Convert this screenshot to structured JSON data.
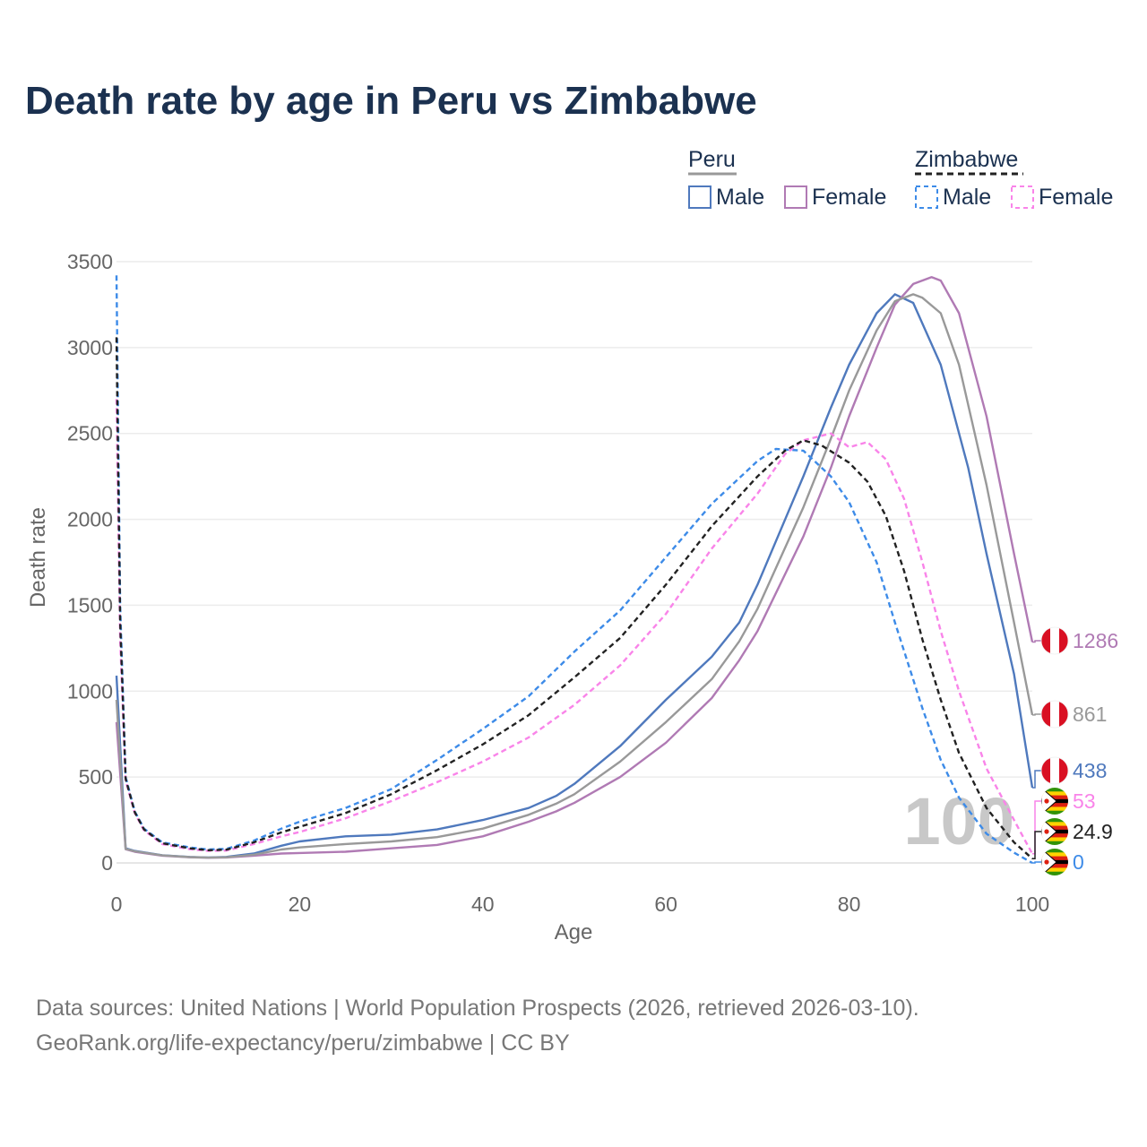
{
  "title": "Death rate by age in Peru vs Zimbabwe",
  "footer": {
    "line1": "Data sources: United Nations | World Population Prospects (2026, retrieved 2026-03-10).",
    "line2": "GeoRank.org/life-expectancy/peru/zimbabwe | CC BY"
  },
  "chart_data": {
    "type": "line",
    "title": "Death rate by age in Peru vs Zimbabwe",
    "xlabel": "Age",
    "ylabel": "Death rate",
    "xlim": [
      0,
      100
    ],
    "ylim": [
      0,
      3500
    ],
    "xticks": [
      0,
      20,
      40,
      60,
      80,
      100
    ],
    "yticks": [
      0,
      500,
      1000,
      1500,
      2000,
      2500,
      3000,
      3500
    ],
    "grid": true,
    "watermark": "100",
    "legend": {
      "groups": [
        {
          "name": "Peru",
          "items": [
            "Male",
            "Female"
          ]
        },
        {
          "name": "Zimbabwe",
          "items": [
            "Male",
            "Female"
          ]
        }
      ]
    },
    "colors": {
      "peru_male": "#4f79bd",
      "peru_female": "#b07ab4",
      "peru_total": "#999999",
      "zim_male": "#3d8be8",
      "zim_female": "#f984e9",
      "zim_total": "#222222"
    },
    "series": [
      {
        "name": "Peru Male",
        "color": "#4f79bd",
        "dash": false,
        "end_label": "438",
        "x": [
          0,
          1,
          2,
          5,
          8,
          10,
          12,
          15,
          18,
          20,
          25,
          30,
          35,
          40,
          45,
          48,
          50,
          55,
          60,
          65,
          68,
          70,
          75,
          78,
          80,
          83,
          85,
          87,
          90,
          93,
          95,
          98,
          100
        ],
        "y": [
          1090,
          85,
          70,
          45,
          35,
          32,
          35,
          55,
          100,
          125,
          155,
          165,
          195,
          250,
          320,
          390,
          460,
          680,
          950,
          1200,
          1400,
          1620,
          2250,
          2650,
          2900,
          3200,
          3310,
          3260,
          2900,
          2300,
          1800,
          1100,
          438
        ]
      },
      {
        "name": "Peru Female",
        "color": "#b07ab4",
        "dash": false,
        "end_label": "1286",
        "x": [
          0,
          1,
          2,
          5,
          8,
          10,
          12,
          15,
          18,
          20,
          25,
          30,
          35,
          40,
          45,
          48,
          50,
          55,
          60,
          65,
          68,
          70,
          75,
          78,
          80,
          83,
          85,
          87,
          89,
          90,
          92,
          95,
          98,
          100
        ],
        "y": [
          820,
          80,
          65,
          42,
          33,
          30,
          32,
          42,
          55,
          58,
          65,
          85,
          105,
          155,
          240,
          300,
          350,
          500,
          700,
          960,
          1180,
          1350,
          1900,
          2300,
          2600,
          3000,
          3250,
          3370,
          3410,
          3390,
          3200,
          2600,
          1800,
          1286
        ]
      },
      {
        "name": "Peru Total",
        "color": "#999999",
        "dash": false,
        "end_label": "861",
        "x": [
          0,
          1,
          2,
          5,
          8,
          10,
          12,
          15,
          18,
          20,
          25,
          30,
          35,
          40,
          45,
          48,
          50,
          55,
          60,
          65,
          68,
          70,
          75,
          78,
          80,
          83,
          85,
          87,
          88,
          90,
          92,
          95,
          98,
          100
        ],
        "y": [
          950,
          82,
          68,
          44,
          34,
          31,
          33,
          48,
          78,
          90,
          110,
          125,
          150,
          200,
          280,
          345,
          400,
          590,
          820,
          1070,
          1290,
          1480,
          2070,
          2470,
          2750,
          3100,
          3270,
          3310,
          3290,
          3200,
          2900,
          2200,
          1400,
          861
        ]
      },
      {
        "name": "Zimbabwe Male",
        "color": "#3d8be8",
        "dash": true,
        "end_label": "0",
        "x": [
          0,
          0.4,
          1,
          2,
          3,
          5,
          8,
          10,
          12,
          15,
          18,
          20,
          25,
          30,
          35,
          40,
          45,
          50,
          55,
          60,
          65,
          70,
          72,
          75,
          78,
          80,
          83,
          85,
          88,
          90,
          92,
          95,
          98,
          100
        ],
        "y": [
          3420,
          1500,
          500,
          300,
          200,
          120,
          90,
          78,
          82,
          130,
          200,
          240,
          320,
          430,
          600,
          780,
          970,
          1230,
          1470,
          1780,
          2090,
          2340,
          2410,
          2400,
          2250,
          2100,
          1750,
          1400,
          900,
          600,
          380,
          170,
          60,
          0
        ]
      },
      {
        "name": "Zimbabwe Female",
        "color": "#f984e9",
        "dash": true,
        "end_label": "53",
        "x": [
          0,
          0.4,
          1,
          2,
          3,
          5,
          8,
          10,
          12,
          15,
          18,
          20,
          25,
          30,
          35,
          40,
          45,
          50,
          55,
          60,
          65,
          70,
          73,
          75,
          78,
          80,
          82,
          84,
          86,
          88,
          90,
          92,
          95,
          98,
          100
        ],
        "y": [
          2700,
          1300,
          480,
          290,
          190,
          110,
          80,
          70,
          72,
          110,
          155,
          180,
          260,
          360,
          470,
          590,
          730,
          920,
          1150,
          1450,
          1830,
          2150,
          2380,
          2460,
          2500,
          2420,
          2450,
          2350,
          2120,
          1750,
          1350,
          1000,
          550,
          250,
          53
        ]
      },
      {
        "name": "Zimbabwe Total",
        "color": "#222222",
        "dash": true,
        "end_label": "24.9",
        "x": [
          0,
          0.4,
          1,
          2,
          3,
          5,
          8,
          10,
          12,
          15,
          18,
          20,
          25,
          30,
          35,
          40,
          45,
          50,
          55,
          60,
          65,
          70,
          73,
          75,
          77,
          80,
          82,
          84,
          86,
          88,
          90,
          92,
          95,
          98,
          100
        ],
        "y": [
          3060,
          1400,
          490,
          295,
          195,
          115,
          85,
          74,
          77,
          120,
          178,
          210,
          290,
          400,
          540,
          690,
          860,
          1080,
          1310,
          1620,
          1960,
          2250,
          2400,
          2460,
          2430,
          2330,
          2220,
          2020,
          1700,
          1300,
          950,
          640,
          320,
          120,
          25
        ]
      }
    ]
  }
}
